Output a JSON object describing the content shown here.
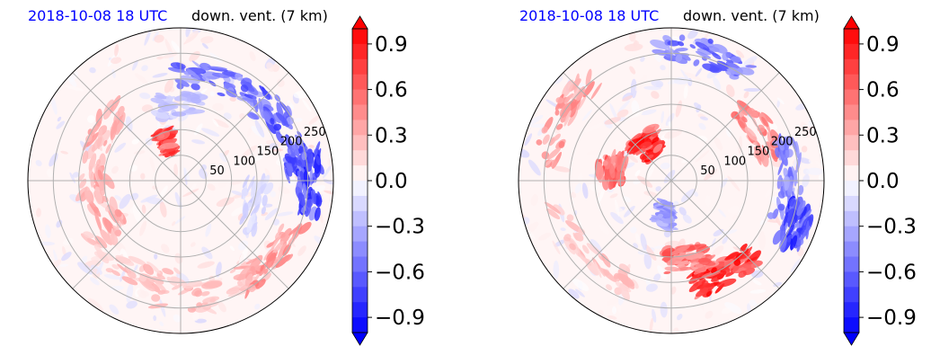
{
  "chart_data": [
    {
      "type": "heatmap",
      "projection": "polar",
      "title_left": "2018-10-08 18 UTC",
      "title_right": "down. vent. (7 km)",
      "title_left_color": "#0000ff",
      "ring_labels": [
        "50",
        "100",
        "150",
        "200",
        "250"
      ],
      "ring_values": [
        50,
        100,
        150,
        200,
        250
      ],
      "r_max": 300,
      "grid": true,
      "colormap": "bwr",
      "colorbar": {
        "ticks": [
          "0.9",
          "0.6",
          "0.3",
          "0.0",
          "−0.3",
          "−0.6",
          "−0.9"
        ],
        "tick_values": [
          0.9,
          0.6,
          0.3,
          0.0,
          -0.3,
          -0.6,
          -0.9
        ],
        "vmin": -1.0,
        "vmax": 1.0,
        "extend": "both"
      },
      "features": [
        {
          "angle": 65,
          "r": 210,
          "value": -0.7,
          "spread": 55
        },
        {
          "angle": 25,
          "r": 230,
          "value": -0.8,
          "spread": 45
        },
        {
          "angle": 0,
          "r": 255,
          "value": -0.9,
          "spread": 30
        },
        {
          "angle": 90,
          "r": 150,
          "value": -0.3,
          "spread": 40
        },
        {
          "angle": 110,
          "r": 80,
          "value": 0.9,
          "spread": 12
        },
        {
          "angle": 160,
          "r": 180,
          "value": 0.4,
          "spread": 60
        },
        {
          "angle": 200,
          "r": 160,
          "value": 0.4,
          "spread": 50
        },
        {
          "angle": 240,
          "r": 200,
          "value": 0.3,
          "spread": 60
        },
        {
          "angle": 285,
          "r": 230,
          "value": 0.35,
          "spread": 55
        },
        {
          "angle": 320,
          "r": 240,
          "value": 0.5,
          "spread": 40
        },
        {
          "angle": 340,
          "r": 150,
          "value": -0.2,
          "spread": 40
        }
      ]
    },
    {
      "type": "heatmap",
      "projection": "polar",
      "title_left": "2018-10-08 18 UTC",
      "title_right": "down. vent. (7 km)",
      "title_left_color": "#0000ff",
      "ring_labels": [
        "50",
        "100",
        "150",
        "200",
        "250"
      ],
      "ring_values": [
        50,
        100,
        150,
        200,
        250
      ],
      "r_max": 300,
      "grid": true,
      "colormap": "bwr",
      "colorbar": {
        "ticks": [
          "0.9",
          "0.6",
          "0.3",
          "0.0",
          "−0.3",
          "−0.6",
          "−0.9"
        ],
        "tick_values": [
          0.9,
          0.6,
          0.3,
          0.0,
          -0.3,
          -0.6,
          -0.9
        ],
        "vmin": -1.0,
        "vmax": 1.0,
        "extend": "both"
      },
      "features": [
        {
          "angle": 125,
          "r": 85,
          "value": 1.0,
          "spread": 30
        },
        {
          "angle": 170,
          "r": 120,
          "value": 0.8,
          "spread": 25
        },
        {
          "angle": 300,
          "r": 210,
          "value": 1.0,
          "spread": 35
        },
        {
          "angle": 280,
          "r": 160,
          "value": 0.7,
          "spread": 30
        },
        {
          "angle": 30,
          "r": 200,
          "value": 0.6,
          "spread": 35
        },
        {
          "angle": 75,
          "r": 260,
          "value": -0.7,
          "spread": 40
        },
        {
          "angle": 0,
          "r": 230,
          "value": -0.6,
          "spread": 40
        },
        {
          "angle": 340,
          "r": 260,
          "value": -0.9,
          "spread": 20
        },
        {
          "angle": 260,
          "r": 70,
          "value": -0.5,
          "spread": 15
        },
        {
          "angle": 220,
          "r": 220,
          "value": 0.3,
          "spread": 60
        },
        {
          "angle": 150,
          "r": 250,
          "value": 0.5,
          "spread": 45
        }
      ]
    }
  ]
}
